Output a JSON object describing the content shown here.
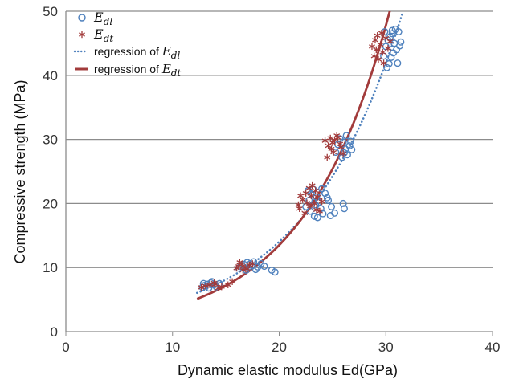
{
  "chart_data": {
    "type": "scatter",
    "xlabel": "Dynamic elastic modulus Ed(GPa)",
    "ylabel": "Compressive strength (MPa)",
    "xlim": [
      0,
      40
    ],
    "ylim": [
      0,
      50
    ],
    "xticks": [
      "0",
      "10",
      "20",
      "30",
      "40"
    ],
    "yticks": [
      "0",
      "10",
      "20",
      "30",
      "40",
      "50"
    ],
    "grid": "horizontal",
    "legend_position": "top-left",
    "colors": {
      "Edl": "#4f81bd",
      "Edt": "#a23b3b"
    },
    "legend": [
      {
        "label": "E",
        "sub": "dl",
        "marker": "circle"
      },
      {
        "label": "E",
        "sub": "dt",
        "marker": "asterisk"
      },
      {
        "label": "regression of E",
        "sub": "dl",
        "marker": "dotted-line"
      },
      {
        "label": "regression of E",
        "sub": "dt",
        "marker": "solid-line"
      }
    ],
    "series": [
      {
        "key": "Edl",
        "points": [
          [
            12.8,
            6.9
          ],
          [
            13.0,
            7.2
          ],
          [
            13.3,
            7.4
          ],
          [
            13.6,
            7.6
          ],
          [
            13.9,
            7.3
          ],
          [
            14.1,
            7.0
          ],
          [
            13.4,
            6.8
          ],
          [
            12.9,
            7.5
          ],
          [
            14.4,
            7.5
          ],
          [
            13.7,
            7.8
          ],
          [
            16.4,
            10.2
          ],
          [
            16.7,
            10.5
          ],
          [
            17.0,
            10.8
          ],
          [
            17.3,
            10.6
          ],
          [
            17.6,
            10.9
          ],
          [
            17.1,
            10.0
          ],
          [
            16.9,
            9.6
          ],
          [
            17.5,
            10.3
          ],
          [
            18.0,
            10.1
          ],
          [
            18.3,
            10.6
          ],
          [
            18.6,
            10.2
          ],
          [
            16.2,
            9.9
          ],
          [
            17.8,
            9.7
          ],
          [
            19.3,
            9.6
          ],
          [
            19.6,
            9.3
          ],
          [
            22.5,
            19.5
          ],
          [
            22.8,
            20.5
          ],
          [
            23.0,
            21.5
          ],
          [
            23.2,
            22.2
          ],
          [
            23.5,
            21.0
          ],
          [
            23.7,
            20.2
          ],
          [
            23.9,
            19.2
          ],
          [
            24.1,
            18.4
          ],
          [
            23.3,
            18.0
          ],
          [
            22.9,
            18.8
          ],
          [
            24.3,
            21.6
          ],
          [
            24.6,
            20.5
          ],
          [
            24.9,
            19.5
          ],
          [
            25.2,
            18.5
          ],
          [
            24.8,
            18.1
          ],
          [
            23.6,
            17.8
          ],
          [
            24.0,
            22.3
          ],
          [
            26.0,
            20.0
          ],
          [
            26.1,
            19.2
          ],
          [
            22.7,
            22.0
          ],
          [
            23.4,
            19.8
          ],
          [
            24.5,
            20.9
          ],
          [
            25.3,
            28.0
          ],
          [
            25.5,
            29.2
          ],
          [
            25.7,
            30.1
          ],
          [
            26.0,
            29.6
          ],
          [
            26.2,
            28.5
          ],
          [
            26.4,
            27.6
          ],
          [
            26.6,
            29.0
          ],
          [
            26.8,
            28.4
          ],
          [
            26.3,
            30.6
          ],
          [
            25.9,
            27.2
          ],
          [
            26.1,
            27.9
          ],
          [
            26.7,
            29.7
          ],
          [
            29.8,
            43.0
          ],
          [
            30.0,
            44.5
          ],
          [
            30.2,
            45.5
          ],
          [
            30.4,
            46.0
          ],
          [
            30.6,
            46.5
          ],
          [
            30.8,
            45.0
          ],
          [
            31.0,
            44.0
          ],
          [
            31.2,
            46.8
          ],
          [
            30.9,
            47.2
          ],
          [
            30.3,
            41.8
          ],
          [
            30.1,
            41.2
          ],
          [
            30.7,
            43.5
          ],
          [
            31.4,
            45.2
          ],
          [
            29.9,
            46.8
          ],
          [
            30.5,
            42.8
          ],
          [
            31.1,
            41.9
          ],
          [
            30.6,
            47.0
          ],
          [
            31.3,
            44.6
          ]
        ]
      },
      {
        "key": "Edt",
        "points": [
          [
            12.7,
            6.9
          ],
          [
            13.1,
            7.1
          ],
          [
            13.5,
            7.3
          ],
          [
            14.0,
            7.4
          ],
          [
            14.6,
            7.0
          ],
          [
            15.2,
            7.3
          ],
          [
            15.6,
            7.8
          ],
          [
            14.3,
            6.8
          ],
          [
            13.9,
            7.6
          ],
          [
            16.2,
            10.2
          ],
          [
            16.5,
            10.5
          ],
          [
            16.8,
            10.0
          ],
          [
            17.0,
            9.8
          ],
          [
            17.2,
            10.4
          ],
          [
            16.6,
            9.6
          ],
          [
            16.0,
            9.9
          ],
          [
            17.5,
            10.6
          ],
          [
            16.3,
            10.8
          ],
          [
            21.8,
            19.8
          ],
          [
            22.2,
            20.6
          ],
          [
            22.5,
            21.6
          ],
          [
            22.8,
            22.4
          ],
          [
            23.0,
            21.2
          ],
          [
            23.3,
            20.0
          ],
          [
            23.5,
            19.0
          ],
          [
            23.8,
            18.8
          ],
          [
            22.4,
            18.5
          ],
          [
            21.9,
            19.2
          ],
          [
            23.1,
            22.8
          ],
          [
            22.6,
            20.1
          ],
          [
            23.6,
            21.0
          ],
          [
            22.0,
            21.2
          ],
          [
            22.9,
            19.6
          ],
          [
            24.0,
            20.3
          ],
          [
            23.4,
            22.0
          ],
          [
            24.3,
            29.8
          ],
          [
            24.6,
            29.0
          ],
          [
            24.9,
            28.5
          ],
          [
            25.2,
            29.9
          ],
          [
            25.5,
            30.3
          ],
          [
            25.8,
            28.8
          ],
          [
            26.0,
            27.8
          ],
          [
            25.1,
            28.0
          ],
          [
            24.5,
            27.2
          ],
          [
            25.4,
            30.6
          ],
          [
            25.0,
            29.5
          ],
          [
            25.7,
            29.3
          ],
          [
            24.8,
            30.2
          ],
          [
            28.7,
            44.5
          ],
          [
            29.0,
            45.5
          ],
          [
            29.2,
            46.2
          ],
          [
            29.5,
            44.8
          ],
          [
            29.7,
            43.6
          ],
          [
            30.0,
            45.8
          ],
          [
            29.3,
            42.5
          ],
          [
            29.8,
            41.9
          ],
          [
            28.9,
            43.0
          ],
          [
            30.2,
            44.2
          ],
          [
            29.6,
            46.6
          ],
          [
            29.1,
            44.0
          ],
          [
            30.4,
            45.3
          ]
        ]
      }
    ],
    "regressions": [
      {
        "key": "Edl",
        "style": "dotted",
        "model": "exponential",
        "a": 1.57,
        "b": 0.1095,
        "x_range": [
          12.3,
          31.6
        ]
      },
      {
        "key": "Edt",
        "style": "solid",
        "model": "exponential",
        "a": 1.08,
        "b": 0.1263,
        "x_range": [
          12.3,
          30.8
        ]
      }
    ]
  }
}
